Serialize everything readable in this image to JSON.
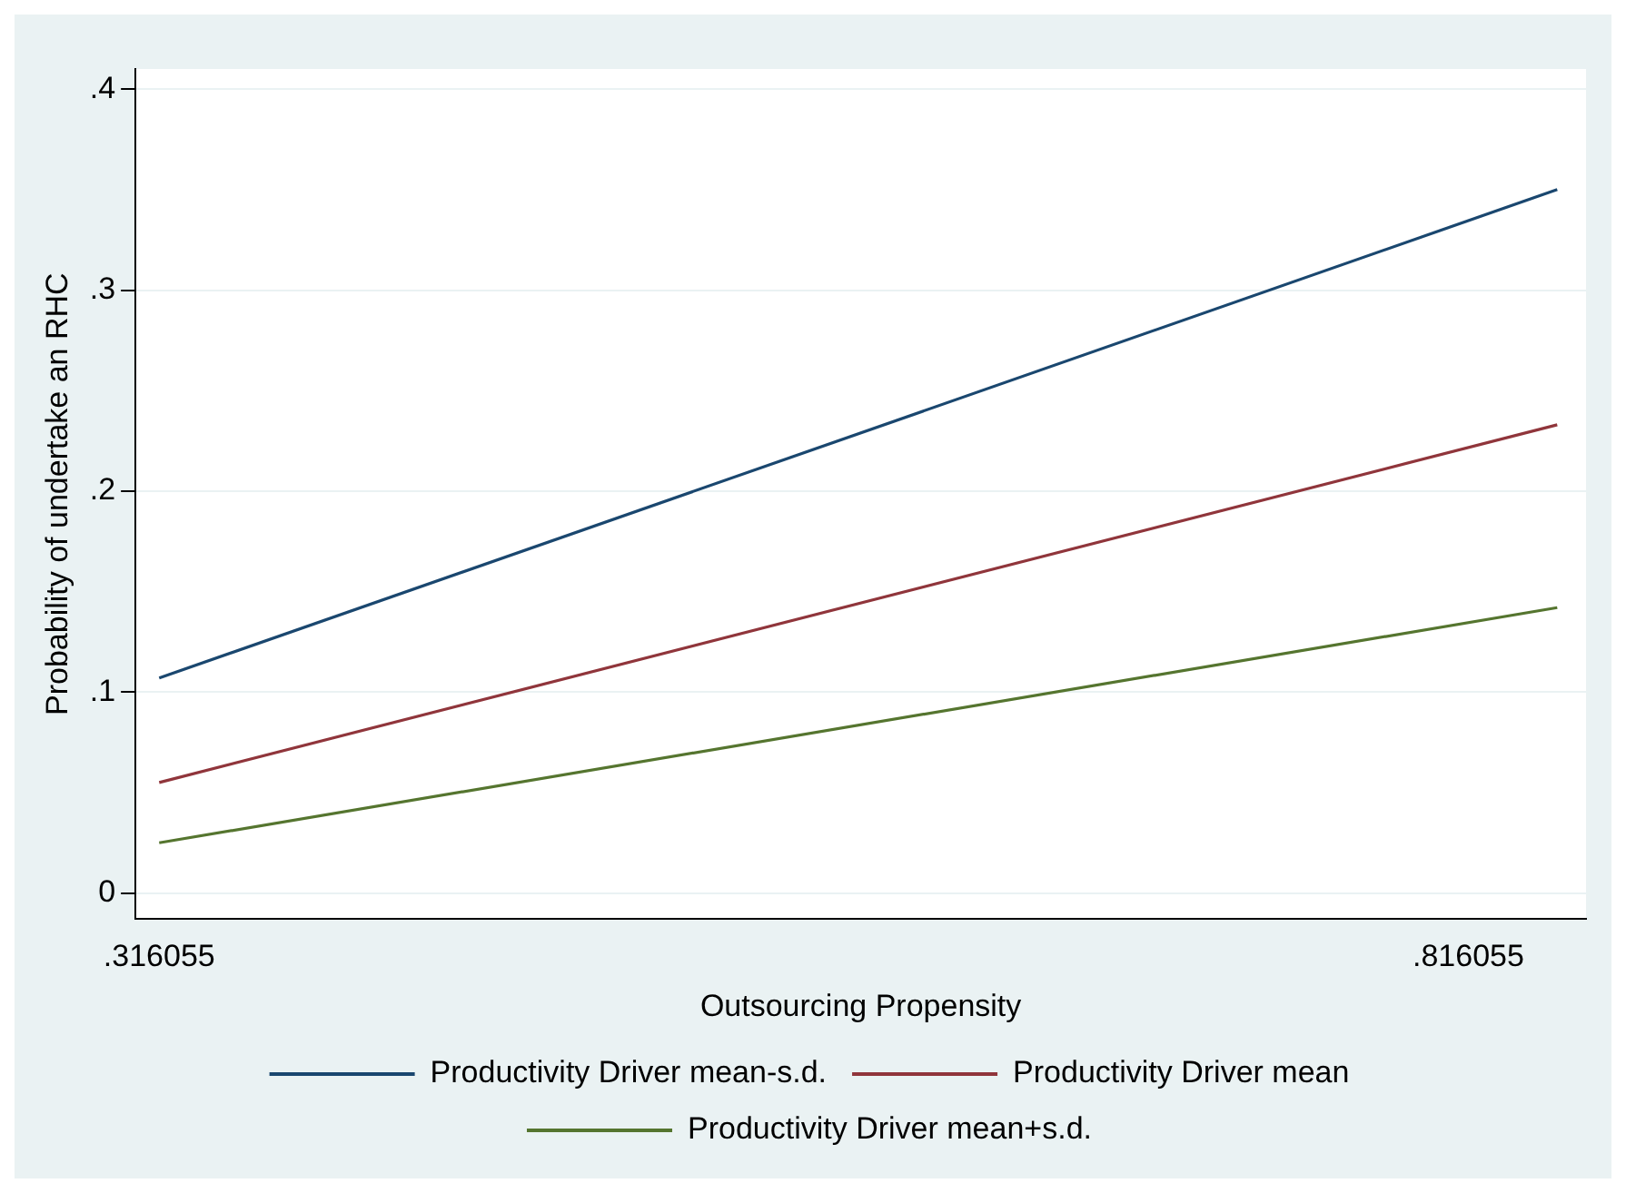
{
  "chart_data": {
    "type": "line",
    "xlabel": "Outsourcing Propensity",
    "ylabel": "Probability of undertake an RHC",
    "x": [
      0.316055,
      0.85
    ],
    "series": [
      {
        "name": "Productivity Driver mean-s.d.",
        "color": "#1a476f",
        "values": [
          0.107,
          0.35
        ]
      },
      {
        "name": "Productivity Driver mean",
        "color": "#90353b",
        "values": [
          0.055,
          0.233
        ]
      },
      {
        "name": "Productivity Driver mean+s.d.",
        "color": "#55752f",
        "values": [
          0.025,
          0.142
        ]
      }
    ],
    "xlim": [
      0.307,
      0.861
    ],
    "ylim": [
      -0.013,
      0.41
    ],
    "xticks": [
      {
        "value": 0.316055,
        "label": ".316055"
      },
      {
        "value": 0.816055,
        "label": ".816055"
      }
    ],
    "yticks": [
      {
        "value": 0,
        "label": "0"
      },
      {
        "value": 0.1,
        "label": ".1"
      },
      {
        "value": 0.2,
        "label": ".2"
      },
      {
        "value": 0.3,
        "label": ".3"
      },
      {
        "value": 0.4,
        "label": ".4"
      }
    ],
    "grid": "y",
    "legend": "bottom",
    "marker": "none",
    "line_style": "solid"
  }
}
